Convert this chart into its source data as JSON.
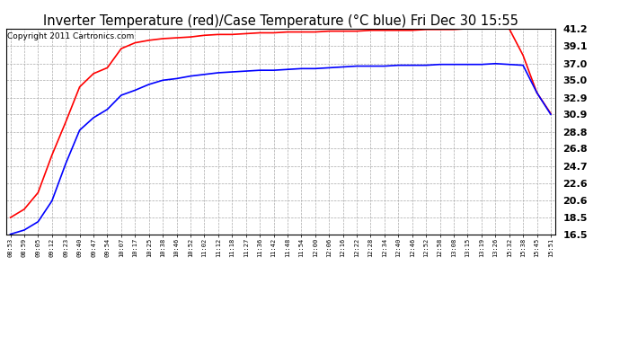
{
  "title": "Inverter Temperature (red)/Case Temperature (°C blue) Fri Dec 30 15:55",
  "copyright": "Copyright 2011 Cartronics.com",
  "x_labels": [
    "08:53",
    "08:59",
    "09:05",
    "09:12",
    "09:23",
    "09:40",
    "09:47",
    "09:54",
    "10:07",
    "10:17",
    "10:25",
    "10:38",
    "10:46",
    "10:52",
    "11:02",
    "11:12",
    "11:18",
    "11:27",
    "11:36",
    "11:42",
    "11:48",
    "11:54",
    "12:00",
    "12:06",
    "12:16",
    "12:22",
    "12:28",
    "12:34",
    "12:40",
    "12:46",
    "12:52",
    "12:58",
    "13:08",
    "13:15",
    "13:19",
    "13:26",
    "15:32",
    "15:38",
    "15:45",
    "15:51"
  ],
  "red_y": [
    18.5,
    19.5,
    21.5,
    26.0,
    30.0,
    34.2,
    35.8,
    36.5,
    38.8,
    39.5,
    39.8,
    40.0,
    40.1,
    40.2,
    40.4,
    40.5,
    40.5,
    40.6,
    40.7,
    40.7,
    40.8,
    40.8,
    40.8,
    40.9,
    40.9,
    40.9,
    41.0,
    41.0,
    41.0,
    41.0,
    41.1,
    41.1,
    41.1,
    41.2,
    41.2,
    41.2,
    41.2,
    38.0,
    33.5,
    31.0
  ],
  "blue_y": [
    16.5,
    17.0,
    18.0,
    20.5,
    25.0,
    29.0,
    30.5,
    31.5,
    33.2,
    33.8,
    34.5,
    35.0,
    35.2,
    35.5,
    35.7,
    35.9,
    36.0,
    36.1,
    36.2,
    36.2,
    36.3,
    36.4,
    36.4,
    36.5,
    36.6,
    36.7,
    36.7,
    36.7,
    36.8,
    36.8,
    36.8,
    36.9,
    36.9,
    36.9,
    36.9,
    37.0,
    36.9,
    36.8,
    33.5,
    30.9
  ],
  "yticks": [
    16.5,
    18.5,
    20.6,
    22.6,
    24.7,
    26.8,
    28.8,
    30.9,
    32.9,
    35.0,
    37.0,
    39.1,
    41.2
  ],
  "ytick_labels": [
    "16.5",
    "18.5",
    "20.6",
    "22.6",
    "24.7",
    "26.8",
    "28.8",
    "30.9",
    "32.9",
    "35.0",
    "37.0",
    "39.1",
    "41.2"
  ],
  "ymin": 16.5,
  "ymax": 41.2,
  "background_color": "#ffffff",
  "plot_bg_color": "#ffffff",
  "grid_color": "#aaaaaa",
  "red_color": "#ff0000",
  "blue_color": "#0000ff",
  "title_fontsize": 10.5,
  "copyright_fontsize": 6.5,
  "ytick_fontsize": 8,
  "xtick_fontsize": 5
}
